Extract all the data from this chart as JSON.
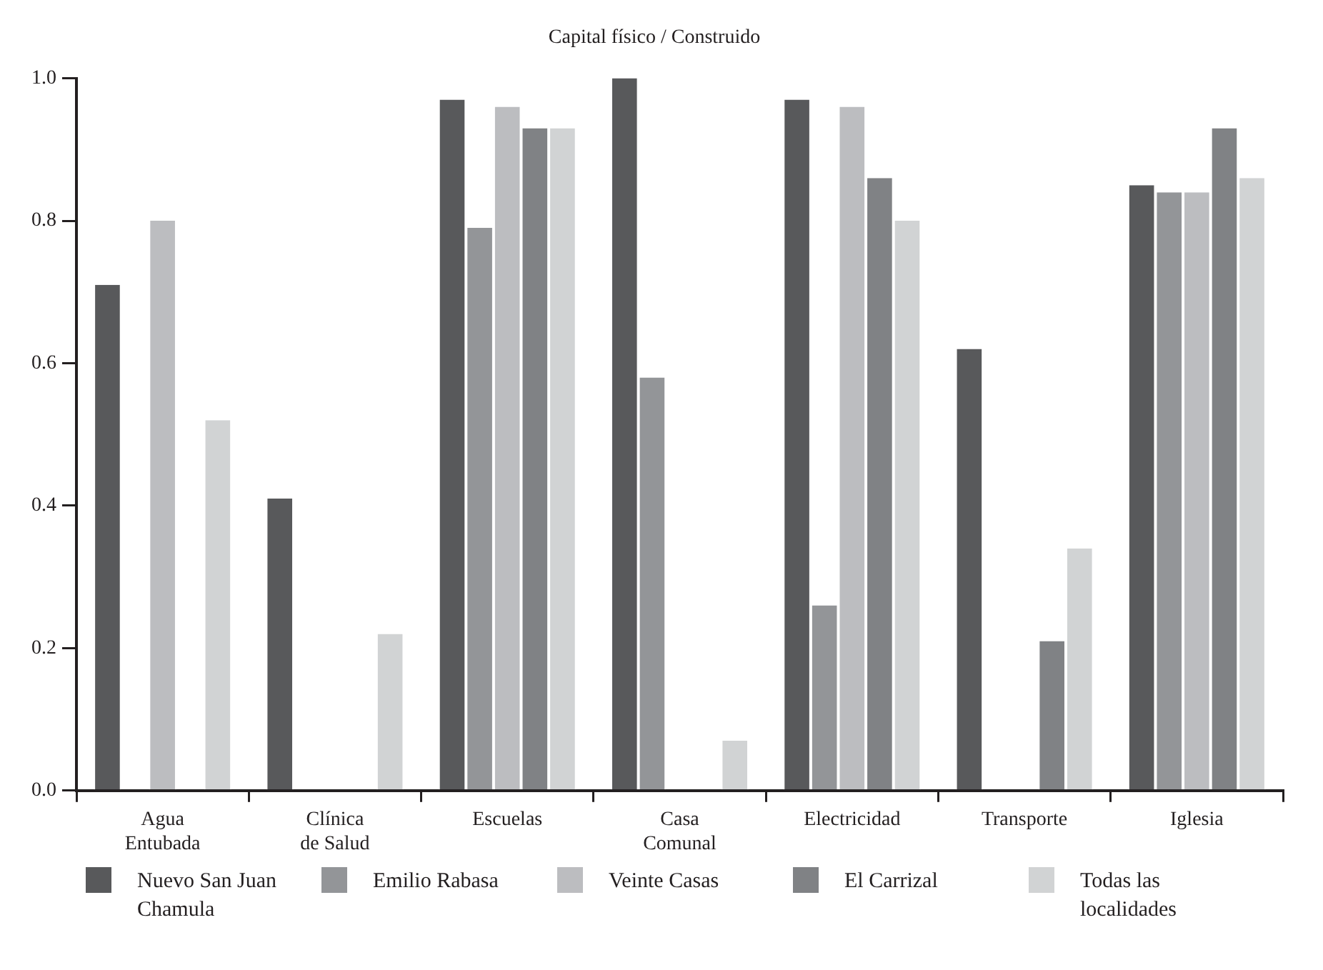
{
  "chart_data": {
    "type": "bar",
    "title": "Capital físico / Construido",
    "categories": [
      "Agua Entubada",
      "Clínica de Salud",
      "Escuelas",
      "Casa Comunal",
      "Electricidad",
      "Transporte",
      "Iglesia"
    ],
    "series": [
      {
        "name": "Nuevo San Juan Chamula",
        "color": "#58595b",
        "values": [
          0.71,
          0.41,
          0.97,
          1.0,
          0.97,
          0.62,
          0.85
        ]
      },
      {
        "name": "Emilio Rabasa",
        "color": "#939598",
        "values": [
          0,
          0,
          0.79,
          0.58,
          0.26,
          0,
          0.84
        ]
      },
      {
        "name": "Veinte Casas",
        "color": "#bcbdc0",
        "values": [
          0.8,
          0,
          0.96,
          0,
          0.96,
          0,
          0.84
        ]
      },
      {
        "name": "El Carrizal",
        "color": "#808285",
        "values": [
          0,
          0,
          0.93,
          0,
          0.86,
          0.21,
          0.93
        ]
      },
      {
        "name": "Todas las localidades",
        "color": "#d1d3d4",
        "values": [
          0.52,
          0.22,
          0.93,
          0.07,
          0.8,
          0.34,
          0.86
        ]
      }
    ],
    "ylim": [
      0,
      1
    ],
    "yticks": [
      {
        "value": 0,
        "label": "0.0"
      },
      {
        "value": 0.2,
        "label": "0.2"
      },
      {
        "value": 0.4,
        "label": "0.4"
      },
      {
        "value": 0.6,
        "label": "0.6"
      },
      {
        "value": 0.8,
        "label": "0.8"
      },
      {
        "value": 1,
        "label": "1.0"
      }
    ],
    "grid": false,
    "legend": "bottom"
  }
}
